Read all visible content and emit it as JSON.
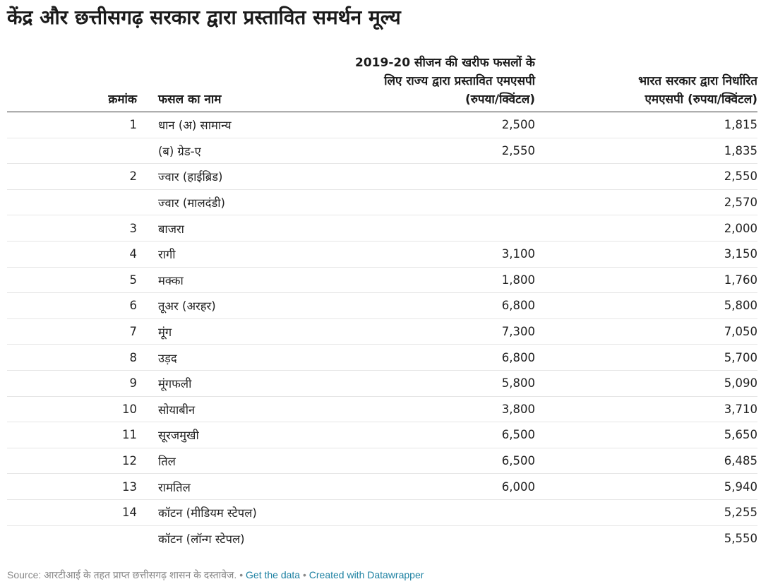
{
  "title": "केंद्र और छत्तीसगढ़ सरकार द्वारा प्रस्तावित समर्थन मूल्य",
  "chart_data": {
    "type": "table",
    "columns": [
      "क्रमांक",
      "फसल का नाम",
      "2019-20 सीजन की खरीफ फसलों के लिए राज्य द्वारा प्रस्तावित एमएसपी (रुपया/क्विंटल)",
      "भारत सरकार द्वारा निर्धारित एमएसपी (रुपया/क्विंटल)"
    ],
    "rows": [
      {
        "sn": "1",
        "crop": "धान (अ) सामान्य",
        "state_msp": "2,500",
        "central_msp": "1,815"
      },
      {
        "sn": "",
        "crop": "(ब) ग्रेड-ए",
        "state_msp": "2,550",
        "central_msp": "1,835"
      },
      {
        "sn": "2",
        "crop": "ज्वार (हाईब्रिड)",
        "state_msp": "",
        "central_msp": "2,550"
      },
      {
        "sn": "",
        "crop": "ज्वार (मालदंडी)",
        "state_msp": "",
        "central_msp": "2,570"
      },
      {
        "sn": "3",
        "crop": "बाजरा",
        "state_msp": "",
        "central_msp": "2,000"
      },
      {
        "sn": "4",
        "crop": "रागी",
        "state_msp": "3,100",
        "central_msp": "3,150"
      },
      {
        "sn": "5",
        "crop": "मक्का",
        "state_msp": "1,800",
        "central_msp": "1,760"
      },
      {
        "sn": "6",
        "crop": "तूअर (अरहर)",
        "state_msp": "6,800",
        "central_msp": "5,800"
      },
      {
        "sn": "7",
        "crop": "मूंग",
        "state_msp": "7,300",
        "central_msp": "7,050"
      },
      {
        "sn": "8",
        "crop": "उड़द",
        "state_msp": "6,800",
        "central_msp": "5,700"
      },
      {
        "sn": "9",
        "crop": "मूंगफली",
        "state_msp": "5,800",
        "central_msp": "5,090"
      },
      {
        "sn": "10",
        "crop": "सोयाबीन",
        "state_msp": "3,800",
        "central_msp": "3,710"
      },
      {
        "sn": "11",
        "crop": "सूरजमुखी",
        "state_msp": "6,500",
        "central_msp": "5,650"
      },
      {
        "sn": "12",
        "crop": "तिल",
        "state_msp": "6,500",
        "central_msp": "6,485"
      },
      {
        "sn": "13",
        "crop": "रामतिल",
        "state_msp": "6,000",
        "central_msp": "5,940"
      },
      {
        "sn": "14",
        "crop": "कॉटन (मीडियम स्टेपल)",
        "state_msp": "",
        "central_msp": "5,255"
      },
      {
        "sn": "",
        "crop": "कॉटन (लॉन्ग स्टेपल)",
        "state_msp": "",
        "central_msp": "5,550"
      }
    ]
  },
  "header": {
    "col_sn": "क्रमांक",
    "col_crop": "फसल का नाम",
    "col_state_line1": "2019-20 सीजन की खरीफ फसलों के",
    "col_state_line2": "लिए राज्य द्वारा प्रस्तावित एमएसपी",
    "col_state_line3": "(रुपया/क्विंटल)",
    "col_central_line1": "भारत सरकार द्वारा निर्धारित",
    "col_central_line2": "एमएसपी (रुपया/क्विंटल)"
  },
  "footer": {
    "source": "Source: आरटीआई के तहत प्राप्त छत्तीसगढ़ शासन के दस्तावेज.",
    "separator": "•",
    "get_data": "Get the data",
    "created_with": "Created with Datawrapper"
  },
  "colors": {
    "text": "#222222",
    "muted": "#888888",
    "link": "#1d81a2",
    "rule": "#333333",
    "row_rule": "#e6e6e6"
  }
}
